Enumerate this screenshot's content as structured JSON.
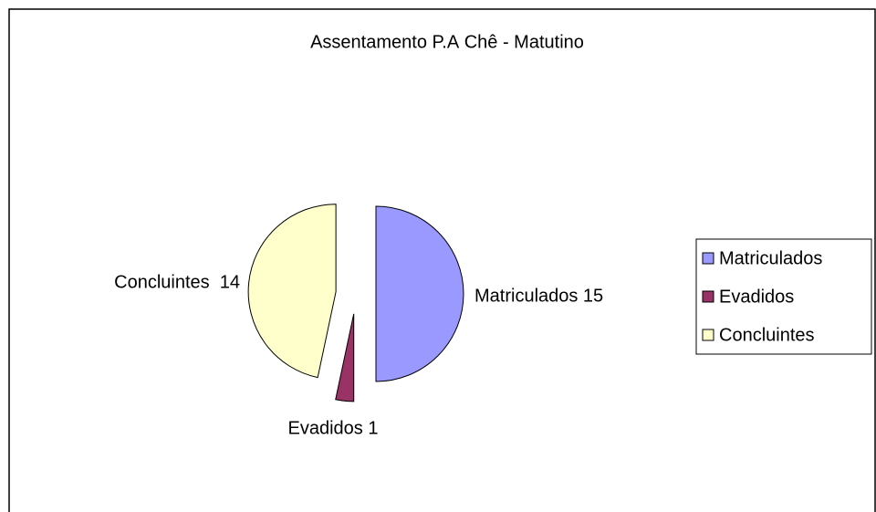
{
  "chart_data": {
    "type": "pie",
    "title": "Assentamento P.A Chê - Matutino",
    "categories": [
      "Matriculados",
      "Evadidos",
      "Concluintes"
    ],
    "values": [
      15,
      1,
      14
    ],
    "value_labels": [
      "Matriculados 15",
      "Evadidos 1",
      "Concluintes  14"
    ],
    "colors": [
      "#9999ff",
      "#993366",
      "#ffffcc"
    ],
    "legend": "right"
  }
}
